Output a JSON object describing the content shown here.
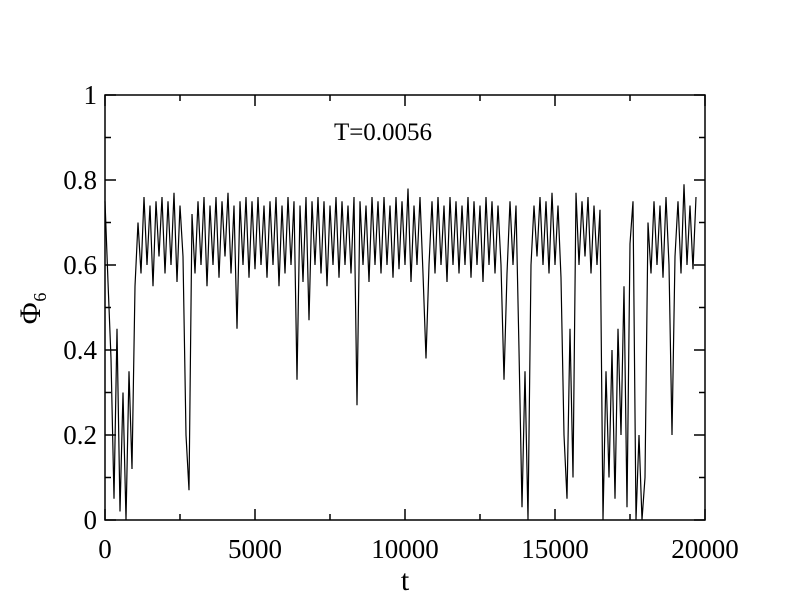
{
  "chart_data": {
    "type": "line",
    "annotation": "T=0.0056",
    "xlabel": "t",
    "ylabel": "Φ₆",
    "xlim": [
      0,
      20000
    ],
    "ylim": [
      0,
      1
    ],
    "xticks": [
      0,
      5000,
      10000,
      15000,
      20000
    ],
    "yticks": [
      0,
      0.2,
      0.4,
      0.6,
      0.8,
      1
    ],
    "xticks_minor": [
      2500,
      7500,
      12500,
      17500
    ],
    "yticks_minor": [
      0.1,
      0.3,
      0.5,
      0.7,
      0.9
    ],
    "color": "#000000",
    "x": [
      0,
      100,
      200,
      300,
      400,
      500,
      600,
      700,
      800,
      900,
      1000,
      1100,
      1200,
      1300,
      1400,
      1500,
      1600,
      1700,
      1800,
      1900,
      2000,
      2100,
      2200,
      2300,
      2400,
      2500,
      2600,
      2700,
      2800,
      2900,
      3000,
      3100,
      3200,
      3300,
      3400,
      3500,
      3600,
      3700,
      3800,
      3900,
      4000,
      4100,
      4200,
      4300,
      4400,
      4500,
      4600,
      4700,
      4800,
      4900,
      5000,
      5100,
      5200,
      5300,
      5400,
      5500,
      5600,
      5700,
      5800,
      5900,
      6000,
      6100,
      6200,
      6300,
      6400,
      6500,
      6600,
      6700,
      6800,
      6900,
      7000,
      7100,
      7200,
      7300,
      7400,
      7500,
      7600,
      7700,
      7800,
      7900,
      8000,
      8100,
      8200,
      8300,
      8400,
      8500,
      8600,
      8700,
      8800,
      8900,
      9000,
      9100,
      9200,
      9300,
      9400,
      9500,
      9600,
      9700,
      9800,
      9900,
      10000,
      10100,
      10200,
      10300,
      10400,
      10500,
      10600,
      10700,
      10800,
      10900,
      11000,
      11100,
      11200,
      11300,
      11400,
      11500,
      11600,
      11700,
      11800,
      11900,
      12000,
      12100,
      12200,
      12300,
      12400,
      12500,
      12600,
      12700,
      12800,
      12900,
      13000,
      13100,
      13200,
      13300,
      13400,
      13500,
      13600,
      13700,
      13800,
      13900,
      14000,
      14100,
      14200,
      14300,
      14400,
      14500,
      14600,
      14700,
      14800,
      14900,
      15000,
      15100,
      15200,
      15300,
      15400,
      15500,
      15600,
      15700,
      15800,
      15900,
      16000,
      16100,
      16200,
      16300,
      16400,
      16500,
      16600,
      16700,
      16800,
      16900,
      17000,
      17100,
      17200,
      17300,
      17400,
      17500,
      17600,
      17700,
      17800,
      17900,
      18000,
      18100,
      18200,
      18300,
      18400,
      18500,
      18600,
      18700,
      18800,
      18900,
      19000,
      19100,
      19200,
      19300,
      19400,
      19500,
      19600,
      19700
    ],
    "values": [
      0.75,
      0.56,
      0.38,
      0.05,
      0.45,
      0.02,
      0.3,
      0.0,
      0.35,
      0.12,
      0.55,
      0.7,
      0.58,
      0.76,
      0.6,
      0.74,
      0.55,
      0.75,
      0.62,
      0.76,
      0.58,
      0.75,
      0.6,
      0.77,
      0.56,
      0.74,
      0.62,
      0.2,
      0.07,
      0.72,
      0.58,
      0.75,
      0.6,
      0.76,
      0.55,
      0.74,
      0.6,
      0.76,
      0.57,
      0.75,
      0.62,
      0.77,
      0.58,
      0.74,
      0.45,
      0.75,
      0.6,
      0.76,
      0.57,
      0.75,
      0.59,
      0.76,
      0.6,
      0.74,
      0.57,
      0.75,
      0.6,
      0.76,
      0.55,
      0.74,
      0.58,
      0.76,
      0.6,
      0.75,
      0.33,
      0.74,
      0.56,
      0.76,
      0.47,
      0.75,
      0.6,
      0.76,
      0.58,
      0.75,
      0.55,
      0.74,
      0.6,
      0.76,
      0.57,
      0.75,
      0.6,
      0.74,
      0.58,
      0.76,
      0.27,
      0.75,
      0.6,
      0.74,
      0.56,
      0.76,
      0.6,
      0.75,
      0.58,
      0.76,
      0.6,
      0.74,
      0.57,
      0.76,
      0.59,
      0.75,
      0.6,
      0.78,
      0.56,
      0.74,
      0.6,
      0.76,
      0.58,
      0.38,
      0.6,
      0.75,
      0.58,
      0.76,
      0.6,
      0.74,
      0.56,
      0.76,
      0.6,
      0.75,
      0.58,
      0.74,
      0.6,
      0.76,
      0.57,
      0.75,
      0.6,
      0.74,
      0.56,
      0.76,
      0.6,
      0.75,
      0.58,
      0.74,
      0.6,
      0.33,
      0.58,
      0.75,
      0.6,
      0.74,
      0.4,
      0.03,
      0.35,
      0.0,
      0.6,
      0.74,
      0.62,
      0.76,
      0.6,
      0.75,
      0.58,
      0.77,
      0.6,
      0.74,
      0.57,
      0.2,
      0.05,
      0.45,
      0.1,
      0.77,
      0.6,
      0.75,
      0.62,
      0.76,
      0.58,
      0.74,
      0.6,
      0.73,
      0.0,
      0.35,
      0.1,
      0.4,
      0.05,
      0.45,
      0.2,
      0.55,
      0.03,
      0.65,
      0.75,
      0.0,
      0.2,
      0.0,
      0.1,
      0.7,
      0.58,
      0.75,
      0.6,
      0.74,
      0.57,
      0.76,
      0.6,
      0.2,
      0.62,
      0.75,
      0.58,
      0.79,
      0.6,
      0.74,
      0.59,
      0.76
    ]
  }
}
